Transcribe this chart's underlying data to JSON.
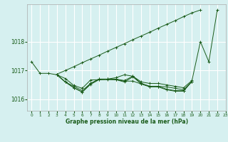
{
  "title": "Graphe pression niveau de la mer (hPa)",
  "background_color": "#d6f0f0",
  "grid_color": "#ffffff",
  "line_color": "#1a5c1a",
  "xlim": [
    -0.5,
    23
  ],
  "ylim": [
    1015.6,
    1019.3
  ],
  "yticks": [
    1016,
    1017,
    1018
  ],
  "xticks": [
    0,
    1,
    2,
    3,
    4,
    5,
    6,
    7,
    8,
    9,
    10,
    11,
    12,
    13,
    14,
    15,
    16,
    17,
    18,
    19,
    20,
    21,
    22,
    23
  ],
  "series": [
    [
      1017.3,
      1016.9,
      1016.9,
      1016.85,
      1016.6,
      1016.45,
      1016.3,
      1016.55,
      1016.7,
      1016.7,
      1016.75,
      1016.85,
      1016.8,
      1016.6,
      1016.55,
      1016.55,
      1016.5,
      1016.45,
      1016.4,
      1016.65,
      1018.0,
      1017.3,
      1019.1,
      null
    ],
    [
      null,
      null,
      null,
      1016.85,
      1016.6,
      1016.4,
      1016.25,
      1016.55,
      1016.7,
      1016.7,
      1016.7,
      1016.65,
      1016.8,
      1016.55,
      1016.45,
      1016.45,
      1016.35,
      1016.3,
      1016.3,
      1016.62,
      null,
      null,
      null,
      null
    ],
    [
      null,
      null,
      null,
      1016.85,
      1016.72,
      1016.48,
      1016.38,
      1016.67,
      1016.68,
      1016.68,
      1016.68,
      1016.63,
      1016.63,
      1016.53,
      1016.45,
      1016.45,
      1016.43,
      1016.38,
      1016.33,
      1016.62,
      null,
      null,
      null,
      null
    ],
    [
      null,
      null,
      null,
      1016.85,
      1016.6,
      1016.4,
      1016.25,
      1016.52,
      1016.68,
      1016.7,
      1016.68,
      1016.6,
      1016.78,
      1016.53,
      1016.43,
      1016.43,
      1016.33,
      1016.28,
      1016.28,
      1016.62,
      null,
      null,
      null,
      null
    ],
    [
      null,
      null,
      null,
      1016.87,
      1017.0,
      1017.13,
      1017.27,
      1017.4,
      1017.53,
      1017.67,
      1017.8,
      1017.93,
      1018.07,
      1018.2,
      1018.33,
      1018.47,
      1018.6,
      1018.73,
      1018.87,
      1019.0,
      1019.1,
      null,
      null,
      null
    ]
  ]
}
